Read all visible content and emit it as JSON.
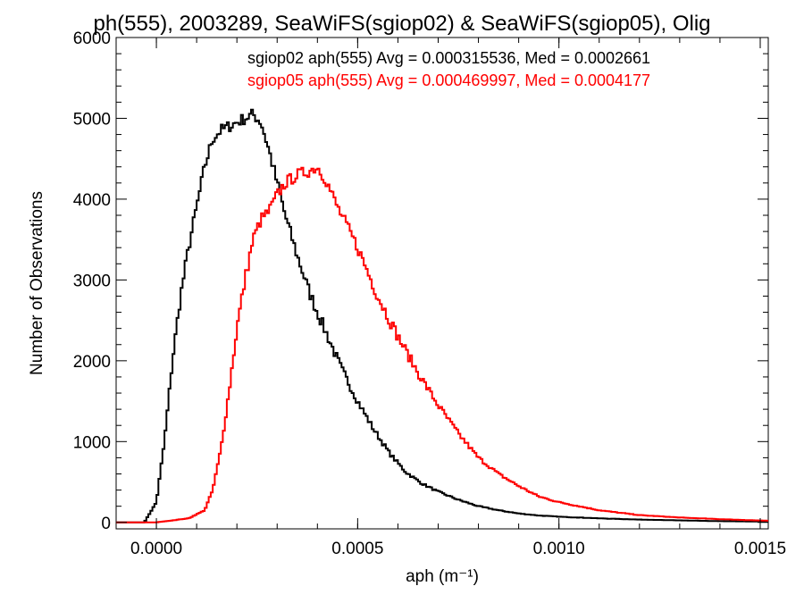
{
  "chart_data": {
    "type": "line",
    "title": "ph(555), 2003289, SeaWiFS(sgiop02) & SeaWiFS(sgiop05), Olig",
    "xlabel": "aph (m⁻¹)",
    "ylabel": "Number of Observations",
    "xlim": [
      -0.0001,
      0.00152
    ],
    "ylim": [
      -80,
      6000
    ],
    "xticks": [
      0.0,
      0.0005,
      0.001,
      0.0015
    ],
    "xtick_labels": [
      "0.0000",
      "0.0005",
      "0.0010",
      "0.0015"
    ],
    "yticks": [
      0,
      1000,
      2000,
      3000,
      4000,
      5000,
      6000
    ],
    "ytick_labels": [
      "0",
      "1000",
      "2000",
      "3000",
      "4000",
      "5000",
      "6000"
    ],
    "grid": false,
    "legend_placement": "top-right",
    "annotations": [
      {
        "text": "sgiop02 aph(555) Avg = 0.000315536, Med = 0.0002661",
        "color": "#000000"
      },
      {
        "text": "sgiop05 aph(555) Avg = 0.000469997, Med = 0.0004177",
        "color": "#ff0000"
      }
    ],
    "series": [
      {
        "color": "#000000",
        "x": [
          -0.0001,
          -3e-05,
          0.0,
          2e-05,
          4e-05,
          6e-05,
          8e-05,
          0.0001,
          0.00012,
          0.00014,
          0.00016,
          0.00018,
          0.0002,
          0.00022,
          0.00024,
          0.00026,
          0.00028,
          0.0003,
          0.00032,
          0.00035,
          0.00038,
          0.0004,
          0.00043,
          0.00046,
          0.0005,
          0.00054,
          0.00058,
          0.00062,
          0.00066,
          0.0007,
          0.00075,
          0.0008,
          0.00085,
          0.0009,
          0.00095,
          0.001,
          0.0011,
          0.0012,
          0.0013,
          0.0014,
          0.00152
        ],
        "y": [
          0,
          0,
          250,
          1000,
          2000,
          2800,
          3400,
          3900,
          4400,
          4750,
          4850,
          4900,
          4950,
          5000,
          5050,
          4950,
          4600,
          4200,
          3800,
          3300,
          2850,
          2600,
          2250,
          1900,
          1500,
          1150,
          850,
          620,
          480,
          380,
          280,
          200,
          150,
          110,
          85,
          70,
          50,
          35,
          25,
          15,
          10
        ]
      },
      {
        "color": "#ff0000",
        "x": [
          -0.0001,
          0.0,
          8e-05,
          0.00012,
          0.00014,
          0.00016,
          0.00018,
          0.0002,
          0.00022,
          0.00024,
          0.00026,
          0.00028,
          0.0003,
          0.00032,
          0.00035,
          0.00038,
          0.0004,
          0.00042,
          0.00045,
          0.0005,
          0.00055,
          0.0006,
          0.00065,
          0.0007,
          0.00075,
          0.0008,
          0.00085,
          0.0009,
          0.00095,
          0.001,
          0.0011,
          0.0012,
          0.0013,
          0.0014,
          0.00152
        ],
        "y": [
          0,
          0,
          50,
          150,
          400,
          900,
          1600,
          2400,
          3000,
          3500,
          3750,
          3850,
          4050,
          4200,
          4300,
          4350,
          4400,
          4250,
          3900,
          3400,
          2800,
          2300,
          1850,
          1450,
          1100,
          800,
          600,
          450,
          320,
          250,
          150,
          90,
          60,
          40,
          20
        ]
      }
    ]
  }
}
